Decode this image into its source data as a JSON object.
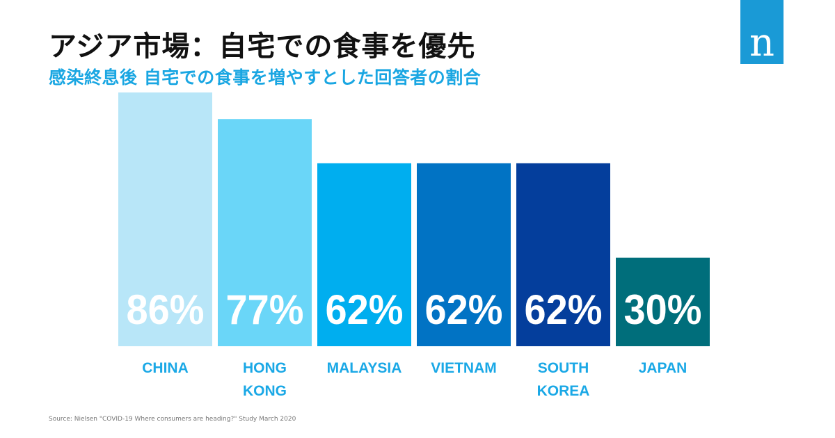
{
  "title": "アジア市場：自宅での食事を優先",
  "subtitle": "感染終息後 自宅での食事を増やすとした回答者の割合",
  "logo_letter": "n",
  "source": "Source: Nielsen \"COVID-19 Where consumers are heading?\" Study March 2020",
  "colors": {
    "title": "#111111",
    "subtitle": "#19a6e2",
    "logo": "#1a9ad6",
    "category_label": "#1aa8e6",
    "value_label": "#ffffff"
  },
  "chart_data": {
    "type": "bar",
    "title": "アジア市場：自宅での食事を優先",
    "subtitle": "感染終息後 自宅での食事を増やすとした回答者の割合",
    "xlabel": "",
    "ylabel": "",
    "unit": "%",
    "ylim": [
      0,
      86
    ],
    "grid": false,
    "categories": [
      [
        "CHINA"
      ],
      [
        "HONG",
        "KONG"
      ],
      [
        "MALAYSIA"
      ],
      [
        "VIETNAM"
      ],
      [
        "SOUTH",
        "KOREA"
      ],
      [
        "JAPAN"
      ]
    ],
    "values": [
      86,
      77,
      62,
      62,
      62,
      30
    ],
    "value_labels": [
      "86%",
      "77%",
      "62%",
      "62%",
      "62%",
      "30%"
    ],
    "bar_colors": [
      "#b8e6f8",
      "#6ad6f8",
      "#00aeef",
      "#0173c4",
      "#043e9c",
      "#006e7b"
    ]
  }
}
